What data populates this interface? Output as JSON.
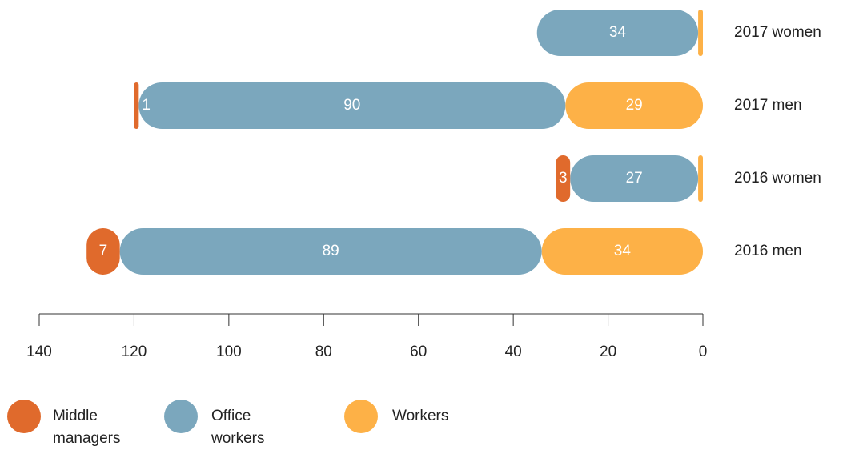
{
  "chart_data": {
    "type": "stacked_bar_horizontal",
    "categories": [
      "2017 women",
      "2017 men",
      "2016 women",
      "2016 men"
    ],
    "series": [
      {
        "name": "Workers",
        "color": "#fdb147",
        "values": [
          1,
          29,
          1,
          34
        ]
      },
      {
        "name": "Office workers",
        "color": "#7ba7bd",
        "values": [
          34,
          90,
          27,
          89
        ]
      },
      {
        "name": "Middle managers",
        "color": "#e06a2c",
        "values": [
          null,
          1,
          3,
          7
        ]
      }
    ],
    "legend_order": [
      2,
      1,
      0
    ],
    "xlim": [
      0,
      140
    ],
    "xticks": [
      0,
      20,
      40,
      60,
      80,
      100,
      120,
      140
    ],
    "x_reversed": true
  }
}
